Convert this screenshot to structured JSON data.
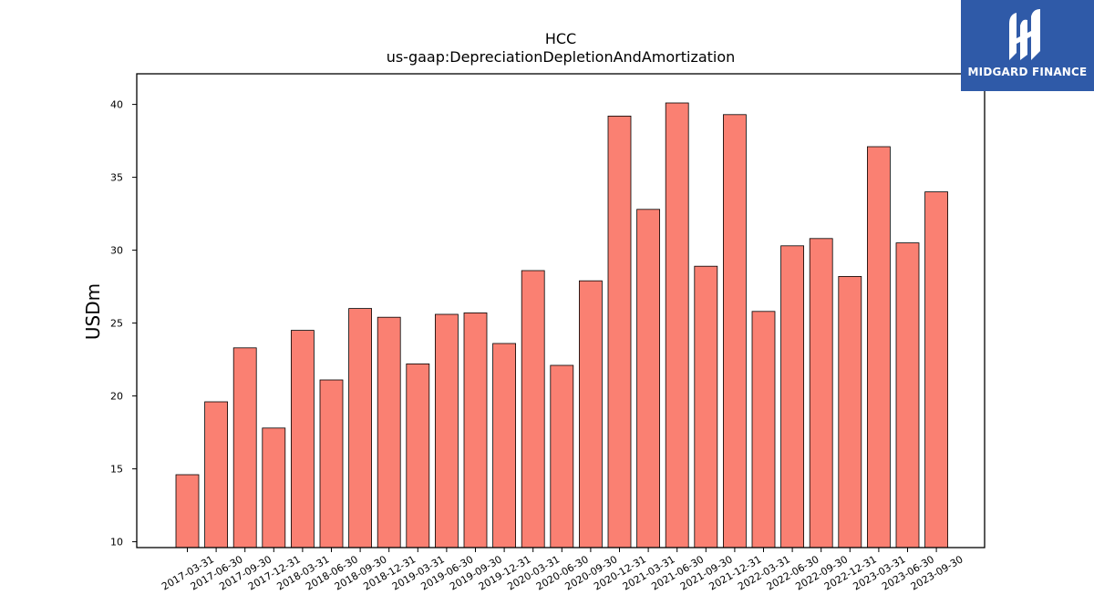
{
  "brand": {
    "name": "MIDGARD FINANCE",
    "color": "#2f5aa8",
    "icon": "midgard-logo-icon"
  },
  "chart_data": {
    "type": "bar",
    "title": "HCC",
    "subtitle": "us-gaap:DepreciationDepletionAndAmortization",
    "xlabel": "",
    "ylabel": "USDm",
    "bar_color": "#fa8072",
    "edge_color": "#000000",
    "ylim": [
      9.6,
      42.1
    ],
    "yticks": [
      10,
      15,
      20,
      25,
      30,
      35,
      40
    ],
    "grid": false,
    "legend": "none",
    "categories": [
      "2017-03-31",
      "2017-06-30",
      "2017-09-30",
      "2017-12-31",
      "2018-03-31",
      "2018-06-30",
      "2018-09-30",
      "2018-12-31",
      "2019-03-31",
      "2019-06-30",
      "2019-09-30",
      "2019-12-31",
      "2020-03-31",
      "2020-06-30",
      "2020-09-30",
      "2020-12-31",
      "2021-03-31",
      "2021-06-30",
      "2021-09-30",
      "2021-12-31",
      "2022-03-31",
      "2022-06-30",
      "2022-09-30",
      "2022-12-31",
      "2023-03-31",
      "2023-06-30",
      "2023-09-30"
    ],
    "values": [
      14.6,
      19.6,
      23.3,
      17.8,
      24.5,
      21.1,
      26.0,
      25.4,
      22.2,
      25.6,
      25.7,
      23.6,
      28.6,
      22.1,
      27.9,
      39.2,
      32.8,
      40.1,
      28.9,
      39.3,
      25.8,
      30.3,
      30.8,
      28.2,
      37.1,
      30.5,
      34.0
    ]
  }
}
